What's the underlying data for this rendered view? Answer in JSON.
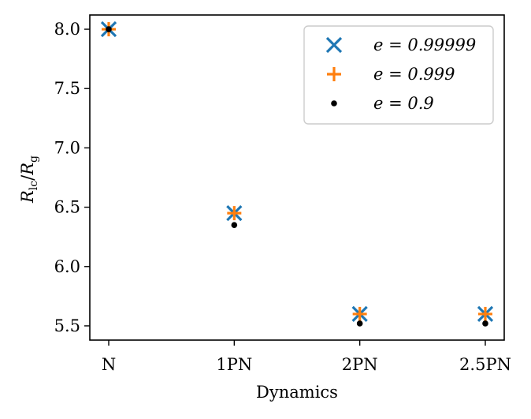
{
  "chart_data": {
    "type": "scatter",
    "title": "",
    "xlabel": "Dynamics",
    "ylabel": "R_lc/R_g",
    "ylabel_main": "R",
    "ylabel_sub1": "lc",
    "ylabel_sep": "/",
    "ylabel_main2": "R",
    "ylabel_sub2": "g",
    "categories": [
      "N",
      "1PN",
      "2PN",
      "2.5PN"
    ],
    "ylim": [
      5.38,
      8.12
    ],
    "yticks": [
      "5.5",
      "6.0",
      "6.5",
      "7.0",
      "7.5",
      "8.0"
    ],
    "grid": false,
    "legend_position": "top-right",
    "series": [
      {
        "name": "e = 0.99999",
        "marker": "x",
        "color": "#1f77b4",
        "values": [
          8.0,
          6.45,
          5.6,
          5.6
        ]
      },
      {
        "name": "e = 0.999",
        "marker": "+",
        "color": "#ff7f0e",
        "values": [
          8.0,
          6.45,
          5.6,
          5.6
        ]
      },
      {
        "name": "e = 0.9",
        "marker": "dot",
        "color": "#000000",
        "values": [
          8.0,
          6.35,
          5.52,
          5.52
        ]
      }
    ]
  }
}
